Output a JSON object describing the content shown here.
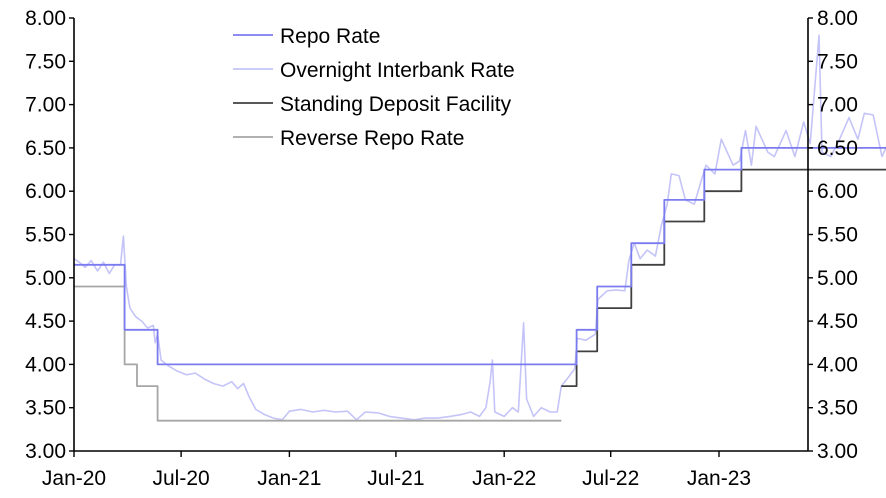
{
  "chart_data": {
    "type": "line",
    "title": "",
    "xlabel": "",
    "ylabel": "",
    "ylim": [
      3.0,
      8.0
    ],
    "y_ticks": [
      "3.00",
      "3.50",
      "4.00",
      "4.50",
      "5.00",
      "5.50",
      "6.00",
      "6.50",
      "7.00",
      "7.50",
      "8.00"
    ],
    "x_ticks": [
      {
        "label": "Jan-20",
        "date": "2020-01-01"
      },
      {
        "label": "Jul-20",
        "date": "2020-07-01"
      },
      {
        "label": "Jan-21",
        "date": "2021-01-01"
      },
      {
        "label": "Jul-21",
        "date": "2021-07-01"
      },
      {
        "label": "Jan-22",
        "date": "2022-01-01"
      },
      {
        "label": "Jul-22",
        "date": "2022-07-01"
      },
      {
        "label": "Jan-23",
        "date": "2023-01-01"
      }
    ],
    "legend_position": "top-center",
    "series": [
      {
        "name": "Repo Rate",
        "color": "#7B7BF0",
        "step": true,
        "points": [
          [
            "2020-01-01",
            5.15
          ],
          [
            "2020-03-27",
            4.4
          ],
          [
            "2020-05-22",
            4.0
          ],
          [
            "2022-05-04",
            4.4
          ],
          [
            "2022-06-08",
            4.9
          ],
          [
            "2022-08-05",
            5.4
          ],
          [
            "2022-09-30",
            5.9
          ],
          [
            "2022-12-07",
            6.25
          ],
          [
            "2023-02-08",
            6.5
          ],
          [
            "2023-11-20",
            6.5
          ]
        ]
      },
      {
        "name": "Overnight Interbank Rate",
        "color": "#C4C4F8",
        "step": false,
        "points": [
          [
            "2020-01-01",
            5.22
          ],
          [
            "2020-01-10",
            5.18
          ],
          [
            "2020-01-20",
            5.12
          ],
          [
            "2020-01-30",
            5.2
          ],
          [
            "2020-02-10",
            5.08
          ],
          [
            "2020-02-20",
            5.18
          ],
          [
            "2020-03-01",
            5.05
          ],
          [
            "2020-03-10",
            5.15
          ],
          [
            "2020-03-20",
            5.15
          ],
          [
            "2020-03-25",
            5.48
          ],
          [
            "2020-03-30",
            4.9
          ],
          [
            "2020-04-05",
            4.65
          ],
          [
            "2020-04-15",
            4.55
          ],
          [
            "2020-04-25",
            4.5
          ],
          [
            "2020-05-05",
            4.42
          ],
          [
            "2020-05-15",
            4.45
          ],
          [
            "2020-05-18",
            4.25
          ],
          [
            "2020-05-22",
            4.35
          ],
          [
            "2020-05-28",
            4.05
          ],
          [
            "2020-06-10",
            3.98
          ],
          [
            "2020-06-25",
            3.92
          ],
          [
            "2020-07-10",
            3.88
          ],
          [
            "2020-07-25",
            3.9
          ],
          [
            "2020-08-10",
            3.83
          ],
          [
            "2020-08-25",
            3.78
          ],
          [
            "2020-09-10",
            3.75
          ],
          [
            "2020-09-25",
            3.8
          ],
          [
            "2020-10-05",
            3.72
          ],
          [
            "2020-10-15",
            3.78
          ],
          [
            "2020-10-25",
            3.62
          ],
          [
            "2020-11-05",
            3.48
          ],
          [
            "2020-11-20",
            3.42
          ],
          [
            "2020-12-05",
            3.38
          ],
          [
            "2020-12-20",
            3.36
          ],
          [
            "2021-01-01",
            3.46
          ],
          [
            "2021-01-20",
            3.48
          ],
          [
            "2021-02-10",
            3.45
          ],
          [
            "2021-03-01",
            3.47
          ],
          [
            "2021-03-20",
            3.45
          ],
          [
            "2021-04-10",
            3.46
          ],
          [
            "2021-04-25",
            3.36
          ],
          [
            "2021-05-10",
            3.45
          ],
          [
            "2021-06-01",
            3.44
          ],
          [
            "2021-06-20",
            3.4
          ],
          [
            "2021-07-10",
            3.38
          ],
          [
            "2021-08-01",
            3.36
          ],
          [
            "2021-08-20",
            3.38
          ],
          [
            "2021-09-10",
            3.38
          ],
          [
            "2021-10-01",
            3.4
          ],
          [
            "2021-10-20",
            3.42
          ],
          [
            "2021-11-05",
            3.45
          ],
          [
            "2021-11-20",
            3.4
          ],
          [
            "2021-12-01",
            3.5
          ],
          [
            "2021-12-08",
            3.8
          ],
          [
            "2021-12-12",
            4.05
          ],
          [
            "2021-12-16",
            3.45
          ],
          [
            "2022-01-01",
            3.4
          ],
          [
            "2022-01-15",
            3.5
          ],
          [
            "2022-01-25",
            3.45
          ],
          [
            "2022-02-03",
            4.48
          ],
          [
            "2022-02-08",
            3.6
          ],
          [
            "2022-02-20",
            3.4
          ],
          [
            "2022-03-05",
            3.5
          ],
          [
            "2022-03-20",
            3.45
          ],
          [
            "2022-04-01",
            3.45
          ],
          [
            "2022-04-08",
            3.75
          ],
          [
            "2022-04-20",
            3.85
          ],
          [
            "2022-05-01",
            3.95
          ],
          [
            "2022-05-05",
            4.3
          ],
          [
            "2022-05-20",
            4.28
          ],
          [
            "2022-06-05",
            4.35
          ],
          [
            "2022-06-09",
            4.75
          ],
          [
            "2022-06-25",
            4.85
          ],
          [
            "2022-07-10",
            4.86
          ],
          [
            "2022-07-25",
            4.85
          ],
          [
            "2022-08-01",
            5.2
          ],
          [
            "2022-08-10",
            5.4
          ],
          [
            "2022-08-20",
            5.22
          ],
          [
            "2022-09-01",
            5.32
          ],
          [
            "2022-09-15",
            5.25
          ],
          [
            "2022-09-25",
            5.6
          ],
          [
            "2022-10-05",
            5.85
          ],
          [
            "2022-10-12",
            6.2
          ],
          [
            "2022-10-25",
            6.18
          ],
          [
            "2022-11-05",
            5.9
          ],
          [
            "2022-11-20",
            5.85
          ],
          [
            "2022-12-01",
            6.1
          ],
          [
            "2022-12-10",
            6.3
          ],
          [
            "2022-12-25",
            6.2
          ],
          [
            "2023-01-05",
            6.6
          ],
          [
            "2023-01-15",
            6.45
          ],
          [
            "2023-01-25",
            6.3
          ],
          [
            "2023-02-05",
            6.35
          ],
          [
            "2023-02-15",
            6.7
          ],
          [
            "2023-02-25",
            6.3
          ],
          [
            "2023-03-05",
            6.75
          ],
          [
            "2023-03-15",
            6.6
          ],
          [
            "2023-03-25",
            6.45
          ],
          [
            "2023-04-05",
            6.4
          ],
          [
            "2023-04-15",
            6.55
          ],
          [
            "2023-04-25",
            6.7
          ],
          [
            "2023-05-10",
            6.4
          ],
          [
            "2023-05-25",
            6.8
          ],
          [
            "2023-06-05",
            6.55
          ],
          [
            "2023-06-20",
            7.8
          ],
          [
            "2023-06-25",
            6.45
          ],
          [
            "2023-07-10",
            6.4
          ],
          [
            "2023-07-25",
            6.6
          ],
          [
            "2023-08-10",
            6.85
          ],
          [
            "2023-08-25",
            6.6
          ],
          [
            "2023-09-05",
            6.9
          ],
          [
            "2023-09-20",
            6.88
          ],
          [
            "2023-10-05",
            6.4
          ],
          [
            "2023-10-15",
            6.55
          ],
          [
            "2023-10-25",
            6.45
          ]
        ]
      },
      {
        "name": "Standing Deposit Facility",
        "color": "#404040",
        "step": true,
        "points": [
          [
            "2022-04-08",
            3.75
          ],
          [
            "2022-05-04",
            4.15
          ],
          [
            "2022-06-08",
            4.65
          ],
          [
            "2022-08-05",
            5.15
          ],
          [
            "2022-09-30",
            5.65
          ],
          [
            "2022-12-07",
            6.0
          ],
          [
            "2023-02-08",
            6.25
          ],
          [
            "2023-11-20",
            6.25
          ]
        ]
      },
      {
        "name": "Reverse Repo Rate",
        "color": "#A6A6A6",
        "step": true,
        "points": [
          [
            "2020-01-01",
            4.9
          ],
          [
            "2020-03-27",
            4.0
          ],
          [
            "2020-04-17",
            3.75
          ],
          [
            "2020-05-22",
            3.35
          ],
          [
            "2022-04-08",
            3.35
          ]
        ]
      }
    ]
  }
}
